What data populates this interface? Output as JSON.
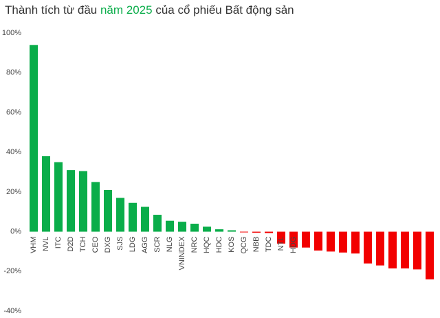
{
  "chart_data": {
    "type": "bar",
    "title": [
      "Thành tích từ đầu ",
      "năm 2025",
      " của cổ phiếu Bất động sản"
    ],
    "categories": [
      "VHM",
      "NVL",
      "ITC",
      "D2D",
      "TCH",
      "CEO",
      "DXG",
      "SJS",
      "LDG",
      "AGG",
      "SCR",
      "NLG",
      "VNINDEX",
      "NRC",
      "HQC",
      "HDC",
      "KOS",
      "QCG",
      "NBB",
      "TDC",
      "NTL",
      "HDG",
      null,
      null,
      null,
      null,
      null,
      null,
      null,
      null,
      null,
      null,
      null
    ],
    "values": [
      94,
      38,
      35,
      31,
      30.5,
      25,
      21,
      17,
      14.5,
      12.5,
      8.5,
      5.5,
      5,
      4,
      2.5,
      1.2,
      0.7,
      -0.3,
      -0.5,
      -0.7,
      -6,
      -8,
      -8,
      -9.5,
      -10,
      -10.5,
      -11,
      -16,
      -17,
      -18.5,
      -18.5,
      -19,
      -24
    ],
    "colors": {
      "positive": "#0aad4a",
      "negative": "#f20000",
      "highlight": "#0aad4a"
    },
    "ylim": [
      -40,
      100
    ],
    "yticks": [
      {
        "value": -40,
        "label": "-40%"
      },
      {
        "value": -20,
        "label": "-20%"
      },
      {
        "value": 0,
        "label": "0%"
      },
      {
        "value": 20,
        "label": "20%"
      },
      {
        "value": 40,
        "label": "40%"
      },
      {
        "value": 60,
        "label": "60%"
      },
      {
        "value": 80,
        "label": "80%"
      },
      {
        "value": 100,
        "label": "100%"
      }
    ]
  }
}
